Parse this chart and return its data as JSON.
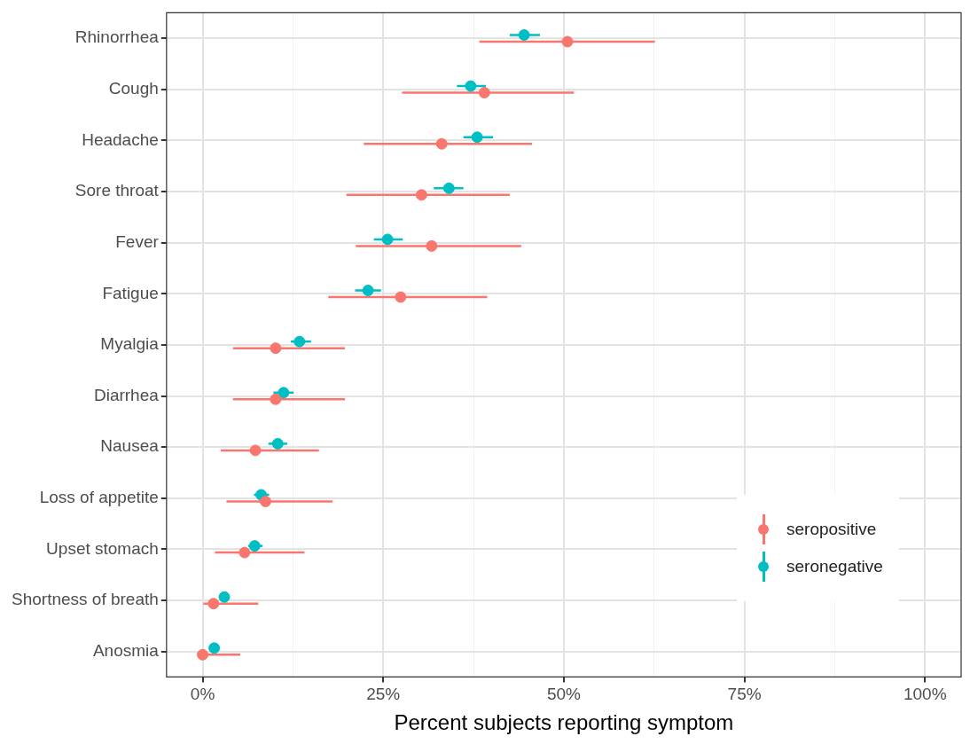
{
  "chart_data": {
    "type": "scatter",
    "orientation": "horizontal",
    "xlabel": "Percent subjects reporting symptom",
    "categories": [
      "Rhinorrhea",
      "Cough",
      "Headache",
      "Sore throat",
      "Fever",
      "Fatigue",
      "Myalgia",
      "Diarrhea",
      "Nausea",
      "Loss of appetite",
      "Upset stomach",
      "Shortness of breath",
      "Anosmia"
    ],
    "series": [
      {
        "name": "seropositive",
        "color": "#f8766d",
        "values": [
          50.5,
          39.0,
          33.1,
          30.3,
          31.7,
          27.4,
          10.1,
          10.1,
          7.3,
          8.7,
          5.8,
          1.5,
          0
        ],
        "errors": [
          [
            38.3,
            62.6
          ],
          [
            27.6,
            51.4
          ],
          [
            22.3,
            45.6
          ],
          [
            19.9,
            42.5
          ],
          [
            21.2,
            44.1
          ],
          [
            17.4,
            39.4
          ],
          [
            4.2,
            19.7
          ],
          [
            4.2,
            19.7
          ],
          [
            2.5,
            16.1
          ],
          [
            3.3,
            18.0
          ],
          [
            1.7,
            14.1
          ],
          [
            0.1,
            7.7
          ],
          [
            0,
            5.2
          ]
        ]
      },
      {
        "name": "seronegative",
        "color": "#00bfc4",
        "values": [
          44.5,
          37.1,
          38.0,
          34.1,
          25.6,
          22.9,
          13.4,
          11.2,
          10.4,
          8.1,
          7.2,
          3.0,
          1.6
        ],
        "errors": [
          [
            42.5,
            46.7
          ],
          [
            35.2,
            39.2
          ],
          [
            36.1,
            40.2
          ],
          [
            32.0,
            36.1
          ],
          [
            23.7,
            27.7
          ],
          [
            21.1,
            24.7
          ],
          [
            12.2,
            15.0
          ],
          [
            9.8,
            12.6
          ],
          [
            9.1,
            11.7
          ],
          [
            7.1,
            9.2
          ],
          [
            6.3,
            8.3
          ],
          [
            2.3,
            3.6
          ],
          [
            1.1,
            2.1
          ]
        ]
      }
    ],
    "xlim": [
      -5,
      105
    ],
    "xticks": [
      {
        "value": 0,
        "label": "0%"
      },
      {
        "value": 12.5,
        "label": null
      },
      {
        "value": 25,
        "label": "25%"
      },
      {
        "value": 37.5,
        "label": null
      },
      {
        "value": 50,
        "label": "50%"
      },
      {
        "value": 62.5,
        "label": null
      },
      {
        "value": 75,
        "label": "75%"
      },
      {
        "value": 87.5,
        "label": null
      },
      {
        "value": 100,
        "label": "100%"
      }
    ],
    "grid": true,
    "legend": "bottom right",
    "marker": "circle"
  }
}
